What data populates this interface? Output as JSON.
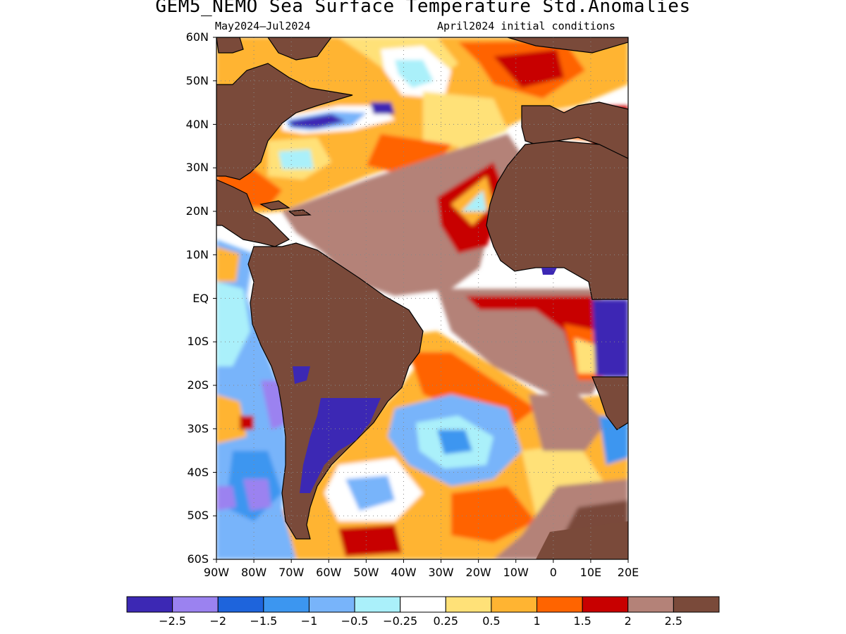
{
  "title": "GEM5_NEMO Sea Surface Temperature Std.Anomalies",
  "subtitle_left": "May2024–Jul2024",
  "subtitle_right": "April2024 initial conditions",
  "map": {
    "region": "Atlantic Ocean",
    "lon_range": [
      -90,
      20
    ],
    "lat_range": [
      -60,
      60
    ],
    "grid": "dotted",
    "land_color": "#7a4a3a",
    "lat_labels": [
      "60N",
      "50N",
      "40N",
      "30N",
      "20N",
      "10N",
      "EQ",
      "10S",
      "20S",
      "30S",
      "40S",
      "50S",
      "60S"
    ],
    "lon_labels": [
      "90W",
      "80W",
      "70W",
      "60W",
      "50W",
      "40W",
      "30W",
      "20W",
      "10W",
      "0",
      "10E",
      "20E"
    ]
  },
  "colorbar": {
    "colors": [
      "#3c28b4",
      "#9b82f0",
      "#1e64dc",
      "#3c96f0",
      "#78b4fa",
      "#aaf0fa",
      "#ffffff",
      "#ffe178",
      "#ffb432",
      "#ff6400",
      "#c80000",
      "#b48278",
      "#7a4a3a"
    ],
    "labels": [
      "−2.5",
      "−2",
      "−1.5",
      "−1",
      "−0.5",
      "−0.25",
      "0.25",
      "0.5",
      "1",
      "1.5",
      "2",
      "2.5"
    ]
  }
}
